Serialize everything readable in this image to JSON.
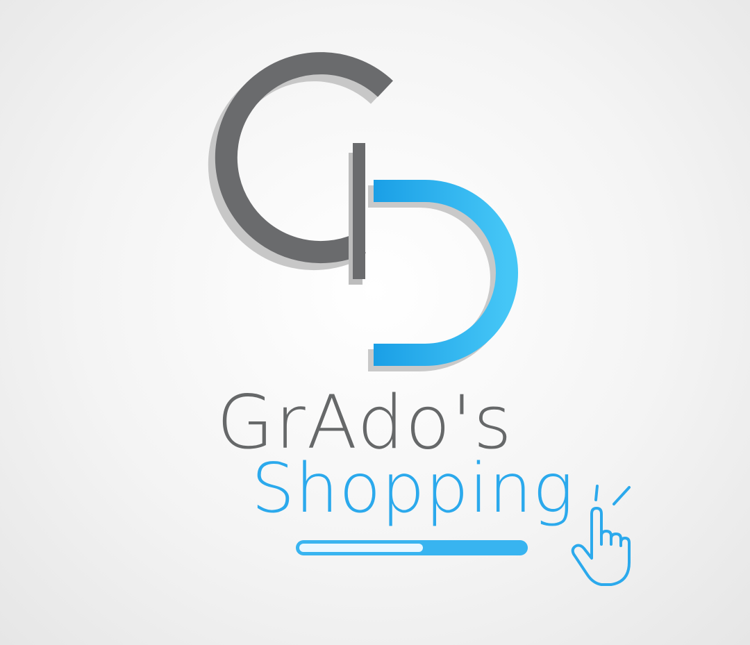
{
  "brand": {
    "name_line_1": "GrAdo's",
    "name_line_2": "Shopping",
    "monogram": "GD",
    "colors": {
      "gray": "#666869",
      "blue": "#2ba9ec",
      "background": "#f4f4f4"
    }
  },
  "loading_bar": {
    "progress_fraction": 0.55
  },
  "icons": {
    "cursor": "pointing-hand-click-icon"
  }
}
